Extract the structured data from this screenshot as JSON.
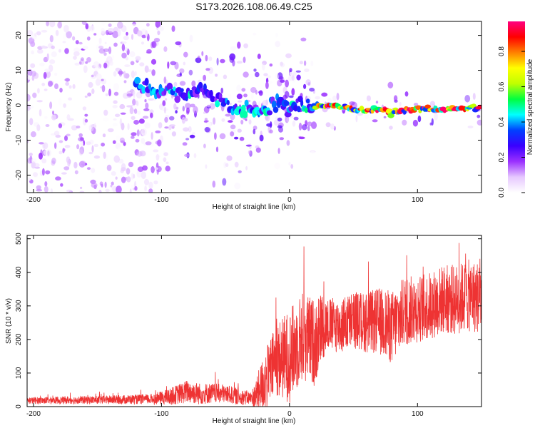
{
  "title": "S173.2026.108.06.49.C25",
  "chart_data": [
    {
      "type": "heatmap",
      "name": "spectrogram",
      "xlabel": "Height of straight line (km)",
      "ylabel": "Frequency (Hz)",
      "xlim": [
        -205,
        150
      ],
      "ylim": [
        -25,
        24
      ],
      "xticks": [
        -200,
        -100,
        0,
        100
      ],
      "yticks": [
        -20,
        -10,
        0,
        10,
        20
      ],
      "colorbar": {
        "label": "Normalized spectral amplitude",
        "range": [
          0,
          0.97
        ],
        "ticks": [
          0,
          0.2,
          0.4,
          0.6,
          0.8
        ],
        "tick_labels": [
          "0.0",
          "0.2",
          "0.4",
          "0.6",
          "0.8"
        ],
        "colormap": [
          "#ffffff",
          "#e6c8ff",
          "#9b30ff",
          "#3a00ff",
          "#0040ff",
          "#00ffff",
          "#00ff40",
          "#c0ff00",
          "#ffff00",
          "#ff8000",
          "#ff0000",
          "#ff0080"
        ]
      },
      "ridge_line": {
        "x": [
          -120,
          -100,
          -80,
          -70,
          -60,
          -50,
          -40,
          -30,
          -20,
          -10,
          0,
          10,
          20,
          30,
          40,
          50,
          60,
          70,
          80,
          90,
          100,
          110,
          120,
          130,
          140,
          150
        ],
        "y": [
          6,
          4,
          3,
          5,
          2,
          1,
          -2,
          -1,
          -1,
          1,
          -1,
          0,
          0,
          0,
          -0.5,
          -1,
          -1.5,
          -1,
          -2,
          -1.5,
          -1,
          -1,
          -1,
          -1,
          -0.8,
          -0.5
        ]
      }
    },
    {
      "type": "line",
      "name": "snr",
      "xlabel": "Height of straight line (km)",
      "ylabel": "SNR (10 * v/v)",
      "xlim": [
        -205,
        150
      ],
      "ylim": [
        0,
        510
      ],
      "xticks": [
        -200,
        -100,
        0,
        100
      ],
      "yticks": [
        0,
        100,
        200,
        300,
        400,
        500
      ],
      "color": "#ee3333",
      "trend": {
        "x": [
          -205,
          -150,
          -110,
          -95,
          -80,
          -70,
          -60,
          -50,
          -40,
          -30,
          -27,
          -20,
          -10,
          0,
          10,
          20,
          25,
          30,
          40,
          50,
          60,
          70,
          80,
          90,
          100,
          110,
          120,
          130,
          140,
          150
        ],
        "y": [
          18,
          20,
          22,
          28,
          45,
          38,
          40,
          38,
          30,
          25,
          30,
          70,
          140,
          150,
          210,
          190,
          240,
          245,
          240,
          260,
          250,
          255,
          235,
          285,
          290,
          300,
          320,
          318,
          330,
          325
        ]
      },
      "spread": {
        "x": [
          -205,
          -150,
          -110,
          -100,
          -80,
          -60,
          -40,
          -30,
          -20,
          -10,
          0,
          20,
          30,
          60,
          80,
          100,
          150
        ],
        "y": [
          10,
          12,
          15,
          20,
          35,
          30,
          25,
          20,
          90,
          110,
          140,
          130,
          80,
          90,
          110,
          100,
          110
        ]
      }
    }
  ]
}
